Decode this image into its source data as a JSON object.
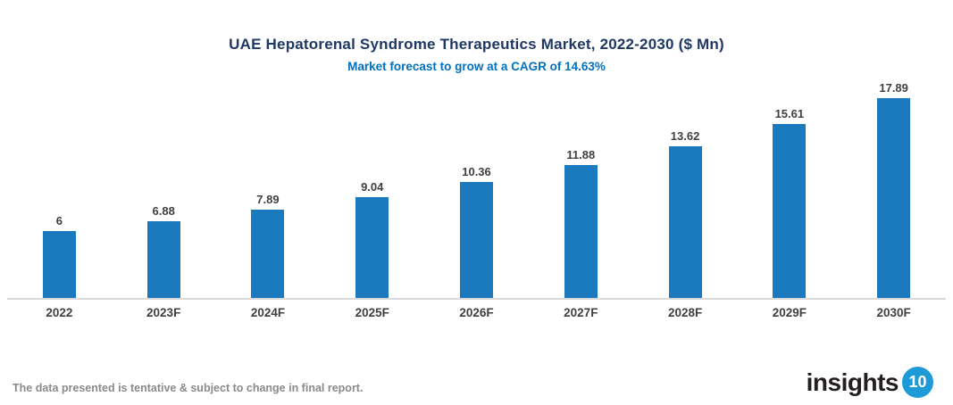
{
  "chart_data": {
    "type": "bar",
    "title": "UAE Hepatorenal Syndrome Therapeutics Market, 2022-2030 ($ Mn)",
    "subtitle": "Market forecast to grow at a CAGR of 14.63%",
    "cagr": "14.63%",
    "categories": [
      "2022",
      "2023F",
      "2024F",
      "2025F",
      "2026F",
      "2027F",
      "2028F",
      "2029F",
      "2030F"
    ],
    "values": [
      6,
      6.88,
      7.89,
      9.04,
      10.36,
      11.88,
      13.62,
      15.61,
      17.89
    ],
    "value_labels": [
      "6",
      "6.88",
      "7.89",
      "9.04",
      "10.36",
      "11.88",
      "13.62",
      "15.61",
      "17.89"
    ],
    "xlabel": "",
    "ylabel": "",
    "ylim": [
      0,
      20
    ],
    "grid": false,
    "legend": false,
    "bar_color": "#1B79BE"
  },
  "colors": {
    "title": "#1F3864",
    "subtitle": "#0070C0",
    "data_label": "#404040",
    "axis_line": "#D9D9D9",
    "footer": "#8A8A8A",
    "logo_text": "#231F20",
    "logo_badge": "#1E9AD6"
  },
  "footer": {
    "note": "The data presented is tentative & subject to change in final report."
  },
  "branding": {
    "logo_text": "insights",
    "logo_badge": "10"
  }
}
